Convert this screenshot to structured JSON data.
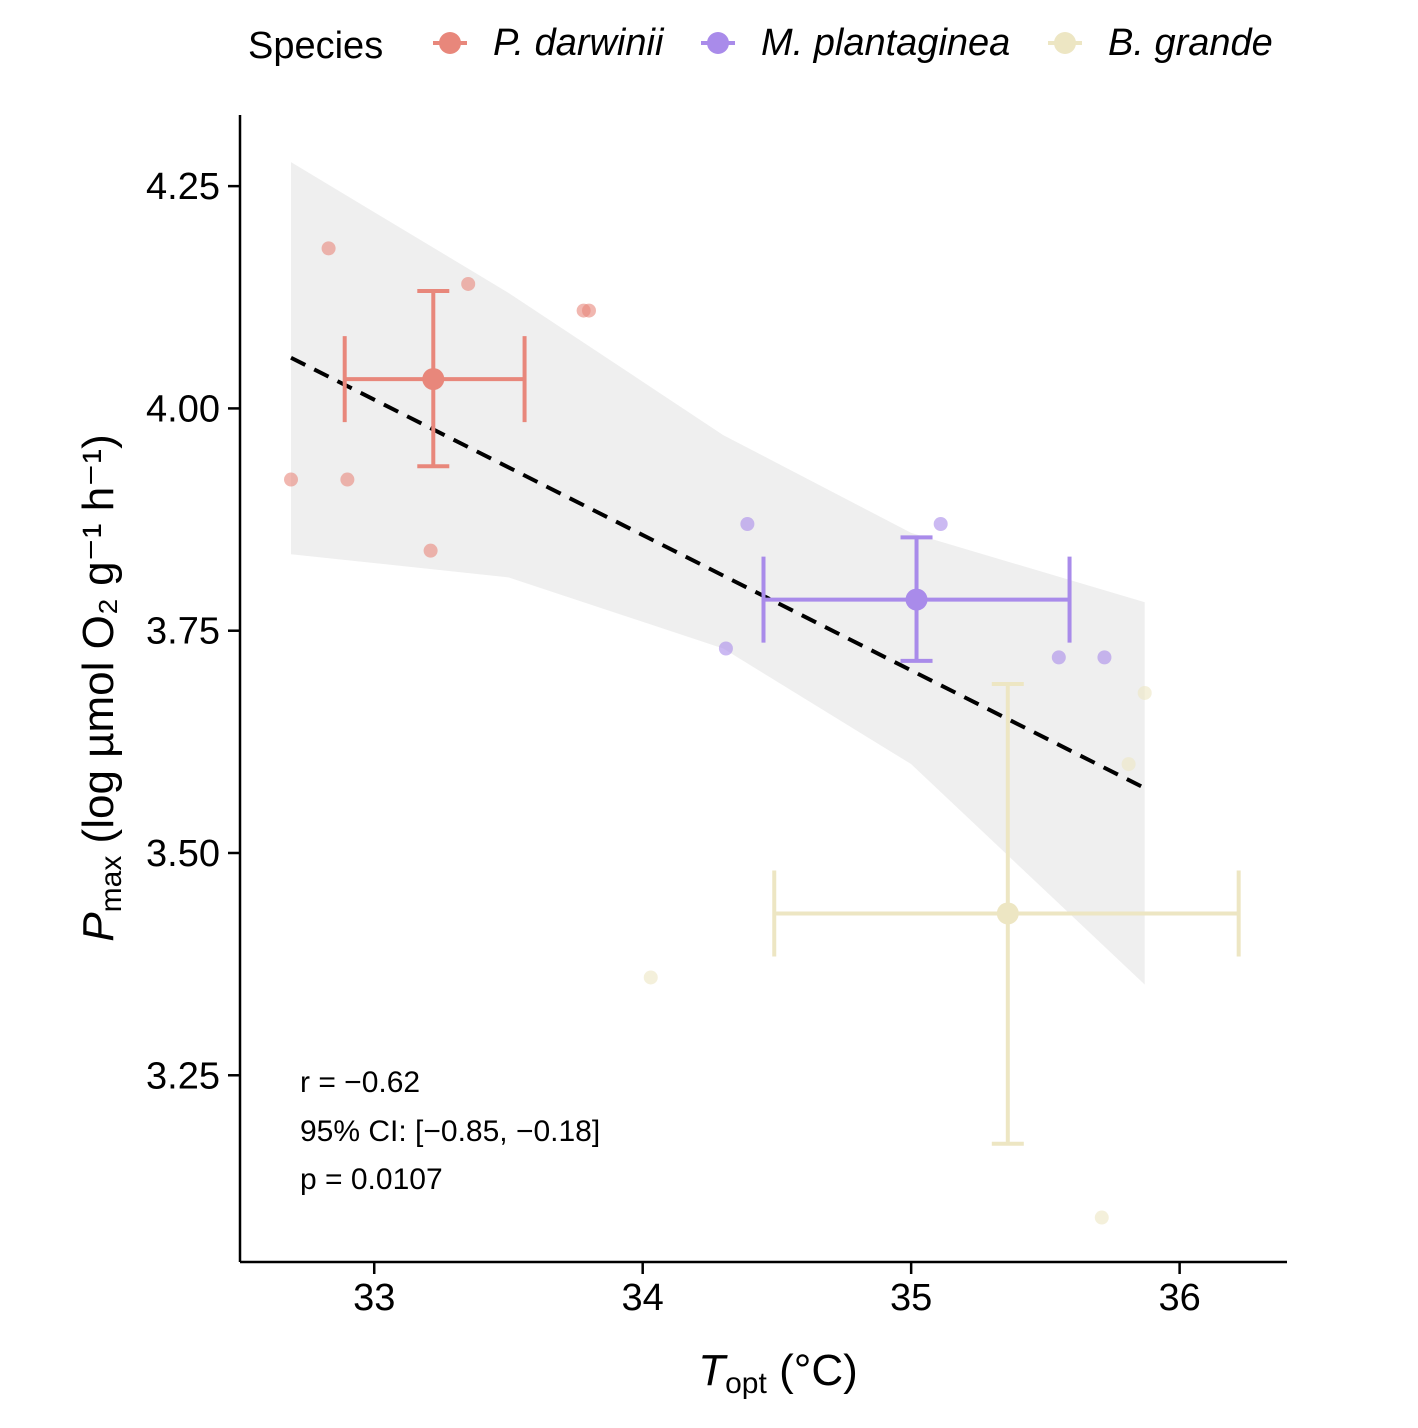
{
  "chart_data": {
    "type": "scatter",
    "legend": {
      "title": "Species",
      "position": "top",
      "entries": [
        {
          "name": "P. darwinii",
          "color": "#E8877B"
        },
        {
          "name": "M. plantaginea",
          "color": "#A98BEA"
        },
        {
          "name": "B. grande",
          "color": "#EDE6C3"
        }
      ]
    },
    "x_axis": {
      "label_main": "T",
      "label_sub": "opt",
      "label_rest": " (°C)",
      "range": [
        32.5,
        36.4
      ],
      "ticks": [
        33,
        34,
        35,
        36
      ],
      "tick_labels": [
        "33",
        "34",
        "35",
        "36"
      ]
    },
    "y_axis": {
      "label_main": "P",
      "label_sub": "max",
      "label_rest": " (log µmol O₂ g⁻¹ h⁻¹)",
      "range": [
        3.04,
        4.33
      ],
      "ticks": [
        3.25,
        3.5,
        3.75,
        4.0,
        4.25
      ],
      "tick_labels": [
        "3.25",
        "3.50",
        "3.75",
        "4.00",
        "4.25"
      ]
    },
    "grid": false,
    "series": [
      {
        "name": "P. darwinii",
        "color": "#E8877B",
        "points": [
          {
            "x": 32.69,
            "y": 3.92
          },
          {
            "x": 32.83,
            "y": 4.18
          },
          {
            "x": 32.9,
            "y": 3.92
          },
          {
            "x": 33.21,
            "y": 3.84
          },
          {
            "x": 33.35,
            "y": 4.14
          },
          {
            "x": 33.78,
            "y": 4.11
          },
          {
            "x": 33.8,
            "y": 4.11
          }
        ],
        "mean": {
          "x": 33.22,
          "y": 4.033,
          "x_low": 32.89,
          "x_high": 33.56,
          "y_low": 3.935,
          "y_high": 4.132
        }
      },
      {
        "name": "M. plantaginea",
        "color": "#A98BEA",
        "points": [
          {
            "x": 34.31,
            "y": 3.73
          },
          {
            "x": 34.39,
            "y": 3.87
          },
          {
            "x": 35.11,
            "y": 3.87
          },
          {
            "x": 35.55,
            "y": 3.72
          },
          {
            "x": 35.72,
            "y": 3.72
          }
        ],
        "mean": {
          "x": 35.02,
          "y": 3.785,
          "x_low": 34.45,
          "x_high": 35.59,
          "y_low": 3.716,
          "y_high": 3.855
        }
      },
      {
        "name": "B. grande",
        "color": "#EDE6C3",
        "points": [
          {
            "x": 34.03,
            "y": 3.36
          },
          {
            "x": 35.71,
            "y": 3.09
          },
          {
            "x": 35.81,
            "y": 3.6
          },
          {
            "x": 35.87,
            "y": 3.68
          }
        ],
        "mean": {
          "x": 35.36,
          "y": 3.432,
          "x_low": 34.49,
          "x_high": 36.22,
          "y_low": 3.173,
          "y_high": 3.69
        }
      }
    ],
    "regression": {
      "style": "dashed",
      "color": "#000000",
      "line": {
        "x0": 32.69,
        "y0": 4.057,
        "x1": 35.87,
        "y1": 3.573
      },
      "confidence_band": {
        "color": "#EFEFEF",
        "upper": [
          [
            32.69,
            4.277
          ],
          [
            33.5,
            4.13
          ],
          [
            34.3,
            3.97
          ],
          [
            35.0,
            3.86
          ],
          [
            35.87,
            3.782
          ]
        ],
        "lower": [
          [
            32.69,
            3.836
          ],
          [
            33.5,
            3.81
          ],
          [
            34.3,
            3.73
          ],
          [
            35.0,
            3.6
          ],
          [
            35.87,
            3.352
          ]
        ]
      }
    },
    "annotations": [
      "r = −0.62",
      "95% CI: [−0.85, −0.18]",
      "p = 0.0107"
    ]
  }
}
